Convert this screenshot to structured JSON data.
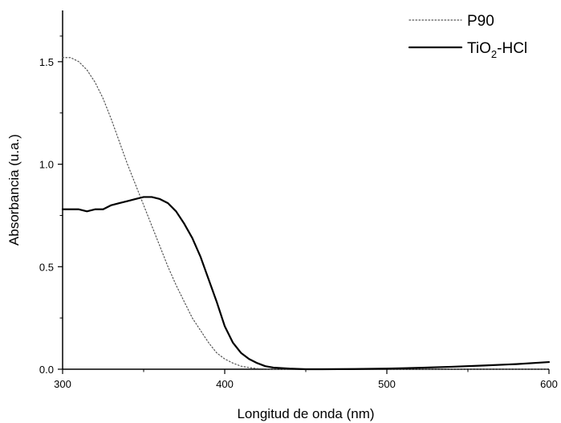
{
  "chart_data": {
    "type": "line",
    "title": "",
    "xlabel": "Longitud de onda (nm)",
    "ylabel": "Absorbancia (u.a.)",
    "xlim": [
      300,
      600
    ],
    "ylim": [
      0,
      1.75
    ],
    "xticks": [
      "300",
      "400",
      "500",
      "600"
    ],
    "yticks": [
      "0.0",
      "0.5",
      "1.0",
      "1.5"
    ],
    "grid": false,
    "legend_position": "top-right",
    "series": [
      {
        "name": "P90",
        "line_style": "dotted",
        "color": "#555555",
        "x": [
          300,
          305,
          310,
          315,
          320,
          325,
          330,
          335,
          340,
          345,
          350,
          355,
          360,
          365,
          370,
          375,
          380,
          385,
          390,
          395,
          400,
          405,
          410,
          415,
          420,
          430,
          450,
          500,
          550,
          600
        ],
        "y": [
          1.52,
          1.52,
          1.5,
          1.46,
          1.4,
          1.32,
          1.22,
          1.11,
          1.0,
          0.9,
          0.8,
          0.7,
          0.6,
          0.5,
          0.41,
          0.33,
          0.25,
          0.19,
          0.13,
          0.08,
          0.05,
          0.03,
          0.015,
          0.008,
          0.003,
          0.0,
          0.0,
          0.0,
          0.0,
          0.0
        ]
      },
      {
        "name": "TiO2-HCl",
        "name_main": "TiO",
        "name_sub": "2",
        "name_suffix": "-HCl",
        "line_style": "solid",
        "color": "#000000",
        "x": [
          300,
          305,
          310,
          315,
          320,
          325,
          330,
          335,
          340,
          345,
          350,
          355,
          360,
          365,
          370,
          375,
          380,
          385,
          390,
          395,
          400,
          405,
          410,
          415,
          420,
          425,
          430,
          440,
          450,
          460,
          480,
          500,
          520,
          540,
          560,
          580,
          600
        ],
        "y": [
          0.78,
          0.78,
          0.78,
          0.77,
          0.78,
          0.78,
          0.8,
          0.81,
          0.82,
          0.83,
          0.84,
          0.84,
          0.83,
          0.81,
          0.77,
          0.71,
          0.64,
          0.55,
          0.44,
          0.33,
          0.21,
          0.13,
          0.08,
          0.05,
          0.03,
          0.015,
          0.008,
          0.003,
          0.0,
          0.0,
          0.001,
          0.003,
          0.007,
          0.012,
          0.018,
          0.025,
          0.035
        ]
      }
    ]
  }
}
